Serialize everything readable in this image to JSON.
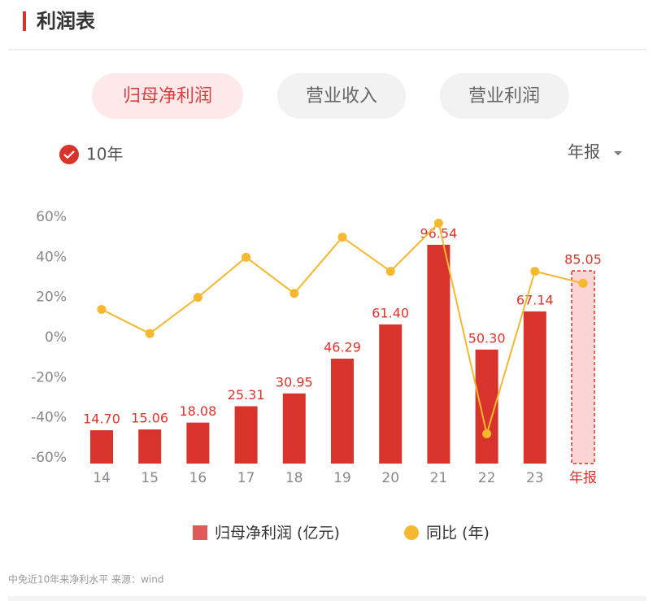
{
  "header": {
    "title": "利润表"
  },
  "tabs": [
    "归母净利润",
    "营业收入",
    "营业利润"
  ],
  "filter": "10年",
  "period": "年报",
  "caption": "中免近10年来净利水平 来源：wind",
  "chart_data": {
    "type": "bar",
    "categories": [
      "14",
      "15",
      "16",
      "17",
      "18",
      "19",
      "20",
      "21",
      "22",
      "23",
      "年报"
    ],
    "series": [
      {
        "name": "归母净利润 (亿元)",
        "type": "bar",
        "color": "#d9342b",
        "highlight_last": true,
        "highlight_color": "#fbd5d5",
        "values": [
          14.7,
          15.06,
          18.08,
          25.31,
          30.95,
          46.29,
          61.4,
          96.54,
          50.3,
          67.14,
          85.05
        ],
        "value_labels": [
          "14.70",
          "15.06",
          "18.08",
          "25.31",
          "30.95",
          "46.29",
          "61.40",
          "96.54",
          "50.30",
          "67.14",
          "85.05"
        ]
      },
      {
        "name": "同比 (年)",
        "type": "line",
        "color": "#f5b82e",
        "values": [
          14,
          2,
          20,
          40,
          22,
          50,
          33,
          57,
          -48,
          33,
          27
        ]
      }
    ],
    "ylim": [
      -60,
      60
    ],
    "yticks": [
      {
        "value": -60,
        "label": "-60%"
      },
      {
        "value": -40,
        "label": "-40%"
      },
      {
        "value": -20,
        "label": "-20%"
      },
      {
        "value": 0,
        "label": "0%"
      },
      {
        "value": 20,
        "label": "20%"
      },
      {
        "value": 40,
        "label": "40%"
      },
      {
        "value": 60,
        "label": "60%"
      }
    ],
    "grid": false,
    "legend": "bottom"
  }
}
